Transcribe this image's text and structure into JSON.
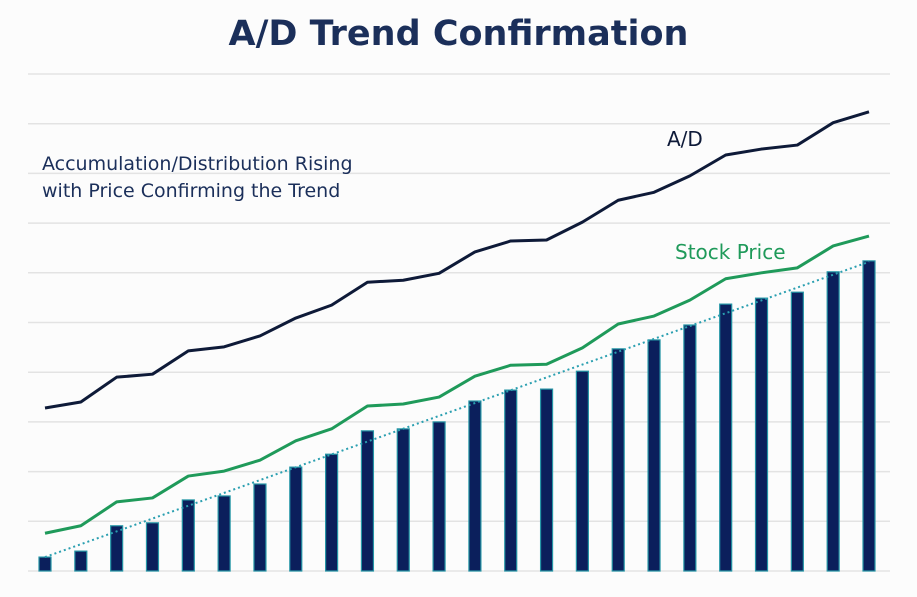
{
  "chart_data": {
    "type": "bar+line",
    "title": "A/D Trend Confirmation",
    "annotation": [
      "Accumulation/Distribution Rising",
      "with Price Confirming the Trend"
    ],
    "xlabel": "",
    "ylabel": "",
    "ylim": [
      0,
      10
    ],
    "grid": true,
    "bars": {
      "values": [
        0.28,
        0.4,
        0.91,
        0.97,
        1.43,
        1.51,
        1.75,
        2.09,
        2.35,
        2.82,
        2.86,
        3.0,
        3.42,
        3.64,
        3.66,
        4.02,
        4.47,
        4.65,
        4.95,
        5.37,
        5.49,
        5.61,
        6.02,
        6.24
      ],
      "color": "#0b1f5c",
      "border": "#2596a6"
    },
    "series": [
      {
        "name": "A/D",
        "color": "#0e1a38",
        "values": [
          3.28,
          3.4,
          3.9,
          3.96,
          4.43,
          4.51,
          4.73,
          5.09,
          5.35,
          5.81,
          5.85,
          5.99,
          6.42,
          6.64,
          6.66,
          7.02,
          7.46,
          7.62,
          7.95,
          8.37,
          8.49,
          8.57,
          9.02,
          9.24
        ]
      },
      {
        "name": "Stock Price",
        "color": "#1f9a5a",
        "values": [
          0.76,
          0.91,
          1.39,
          1.47,
          1.91,
          2.01,
          2.23,
          2.62,
          2.86,
          3.32,
          3.36,
          3.5,
          3.92,
          4.14,
          4.16,
          4.49,
          4.97,
          5.13,
          5.45,
          5.88,
          6.0,
          6.1,
          6.54,
          6.74
        ]
      }
    ],
    "trendline": {
      "start": 0.28,
      "end": 6.22,
      "color": "#2a9fb0",
      "style": "dotted"
    }
  }
}
